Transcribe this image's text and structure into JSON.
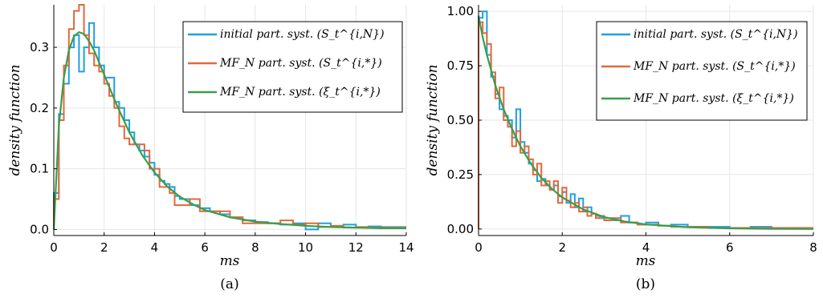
{
  "chart_data": [
    {
      "type": "line",
      "subtitle": "(a)",
      "xlabel": "ms",
      "ylabel": "density function",
      "xlim": [
        0,
        14
      ],
      "ylim": [
        -0.01,
        0.37
      ],
      "x_ticks": [
        "0",
        "2",
        "4",
        "6",
        "8",
        "10",
        "12",
        "14"
      ],
      "y_ticks": [
        "0.0",
        "0.1",
        "0.2",
        "0.3"
      ],
      "grid": true,
      "legend_position": "top-right",
      "series": [
        {
          "name": "initial part. syst. (S_t^{i,N})",
          "color": "#1f9fe0",
          "style": "step",
          "bin_edges": [
            0,
            0.2,
            0.4,
            0.6,
            0.8,
            1.0,
            1.2,
            1.4,
            1.6,
            1.8,
            2.0,
            2.2,
            2.4,
            2.6,
            2.8,
            3.0,
            3.2,
            3.4,
            3.6,
            3.8,
            4.0,
            4.2,
            4.4,
            4.6,
            4.8,
            5.0,
            5.4,
            5.8,
            6.2,
            6.6,
            7.0,
            7.5,
            8.0,
            8.5,
            9.0,
            9.5,
            10.0,
            10.5,
            11.0,
            11.5,
            12.0,
            12.5,
            13.0,
            13.5,
            14.0
          ],
          "values": [
            0.06,
            0.19,
            0.24,
            0.3,
            0.32,
            0.26,
            0.3,
            0.34,
            0.3,
            0.27,
            0.25,
            0.25,
            0.21,
            0.2,
            0.18,
            0.16,
            0.14,
            0.13,
            0.12,
            0.11,
            0.09,
            0.08,
            0.075,
            0.07,
            0.055,
            0.05,
            0.04,
            0.035,
            0.03,
            0.025,
            0.02,
            0.015,
            0.012,
            0.01,
            0.008,
            0.01,
            0.0,
            0.01,
            0.004,
            0.008,
            0.003,
            0.005,
            0.004,
            0.004
          ]
        },
        {
          "name": "MF_N part. syst. (S_t^{i,*})",
          "color": "#e2683c",
          "style": "step",
          "bin_edges": [
            0,
            0.2,
            0.4,
            0.6,
            0.8,
            1.0,
            1.2,
            1.4,
            1.6,
            1.8,
            2.0,
            2.2,
            2.4,
            2.6,
            2.8,
            3.0,
            3.2,
            3.4,
            3.6,
            3.8,
            4.0,
            4.2,
            4.4,
            4.6,
            4.8,
            5.0,
            5.4,
            5.8,
            6.2,
            6.6,
            7.0,
            7.5,
            8.0,
            8.5,
            9.0,
            9.5,
            10.0,
            10.5,
            11.0,
            11.5,
            12.0,
            12.5,
            13.0,
            13.5,
            14.0
          ],
          "values": [
            0.05,
            0.18,
            0.27,
            0.33,
            0.36,
            0.37,
            0.32,
            0.29,
            0.27,
            0.26,
            0.24,
            0.22,
            0.2,
            0.17,
            0.15,
            0.14,
            0.14,
            0.14,
            0.13,
            0.1,
            0.1,
            0.07,
            0.07,
            0.06,
            0.04,
            0.04,
            0.05,
            0.03,
            0.03,
            0.03,
            0.02,
            0.01,
            0.01,
            0.01,
            0.015,
            0.008,
            0.01,
            0.004,
            0.006,
            0.003,
            0.004,
            0.003,
            0.003,
            0.003
          ]
        },
        {
          "name": "MF_N part. syst. (ξ_t^{i,*})",
          "color": "#3a9e4a",
          "style": "line",
          "x": [
            0,
            0.2,
            0.4,
            0.6,
            0.8,
            1.0,
            1.2,
            1.4,
            1.6,
            1.8,
            2.0,
            2.5,
            3.0,
            3.5,
            4.0,
            4.5,
            5.0,
            5.5,
            6.0,
            7.0,
            8.0,
            9.0,
            10.0,
            11.0,
            12.0,
            13.0,
            14.0
          ],
          "y": [
            0.0,
            0.17,
            0.25,
            0.295,
            0.318,
            0.325,
            0.322,
            0.31,
            0.295,
            0.275,
            0.255,
            0.205,
            0.16,
            0.123,
            0.094,
            0.071,
            0.054,
            0.042,
            0.032,
            0.02,
            0.013,
            0.009,
            0.006,
            0.004,
            0.003,
            0.002,
            0.002
          ]
        }
      ]
    },
    {
      "type": "line",
      "subtitle": "(b)",
      "xlabel": "ms",
      "ylabel": "density function",
      "xlim": [
        0,
        8
      ],
      "ylim": [
        -0.03,
        1.03
      ],
      "x_ticks": [
        "0",
        "2",
        "4",
        "6",
        "8"
      ],
      "y_ticks": [
        "0.00",
        "0.25",
        "0.50",
        "0.75",
        "1.00"
      ],
      "grid": true,
      "legend_position": "top-right",
      "series": [
        {
          "name": "initial part. syst. (S_t^{i,N})",
          "color": "#1f9fe0",
          "style": "step",
          "bin_edges": [
            0,
            0.1,
            0.2,
            0.3,
            0.4,
            0.5,
            0.6,
            0.7,
            0.8,
            0.9,
            1.0,
            1.1,
            1.2,
            1.3,
            1.4,
            1.5,
            1.6,
            1.7,
            1.8,
            1.9,
            2.0,
            2.1,
            2.2,
            2.3,
            2.4,
            2.5,
            2.6,
            2.7,
            2.8,
            2.9,
            3.0,
            3.2,
            3.4,
            3.6,
            3.8,
            4.0,
            4.3,
            4.6,
            5.0,
            5.5,
            6.0,
            6.5,
            7.0,
            7.5,
            8.0
          ],
          "values": [
            0.97,
            1.0,
            0.8,
            0.7,
            0.62,
            0.55,
            0.52,
            0.5,
            0.42,
            0.55,
            0.4,
            0.35,
            0.3,
            0.27,
            0.22,
            0.23,
            0.2,
            0.18,
            0.2,
            0.15,
            0.17,
            0.12,
            0.16,
            0.1,
            0.14,
            0.08,
            0.1,
            0.07,
            0.06,
            0.05,
            0.05,
            0.04,
            0.06,
            0.03,
            0.02,
            0.03,
            0.015,
            0.02,
            0.01,
            0.01,
            0.005,
            0.01,
            0.005,
            0.005
          ]
        },
        {
          "name": "MF_N part. syst. (S_t^{i,*})",
          "color": "#e2683c",
          "style": "step",
          "bin_edges": [
            0,
            0.1,
            0.2,
            0.3,
            0.4,
            0.5,
            0.6,
            0.7,
            0.8,
            0.9,
            1.0,
            1.1,
            1.2,
            1.3,
            1.4,
            1.5,
            1.6,
            1.7,
            1.8,
            1.9,
            2.0,
            2.1,
            2.2,
            2.3,
            2.4,
            2.5,
            2.6,
            2.7,
            2.8,
            2.9,
            3.0,
            3.2,
            3.4,
            3.6,
            3.8,
            4.0,
            4.3,
            4.6,
            5.0,
            5.5,
            6.0,
            6.5,
            7.0,
            7.5,
            8.0
          ],
          "values": [
            0.95,
            0.9,
            0.85,
            0.72,
            0.6,
            0.65,
            0.5,
            0.47,
            0.38,
            0.45,
            0.35,
            0.38,
            0.32,
            0.25,
            0.3,
            0.2,
            0.22,
            0.18,
            0.22,
            0.12,
            0.19,
            0.13,
            0.1,
            0.12,
            0.08,
            0.1,
            0.06,
            0.07,
            0.05,
            0.06,
            0.04,
            0.05,
            0.03,
            0.03,
            0.02,
            0.02,
            0.015,
            0.01,
            0.01,
            0.005,
            0.005,
            0.005,
            0.005,
            0.005
          ]
        },
        {
          "name": "MF_N part. syst. (ξ_t^{i,*})",
          "color": "#3a9e4a",
          "style": "line",
          "x": [
            0,
            0.1,
            0.2,
            0.4,
            0.6,
            0.8,
            1.0,
            1.25,
            1.5,
            1.75,
            2.0,
            2.5,
            3.0,
            3.5,
            4.0,
            5.0,
            6.0,
            7.0,
            8.0
          ],
          "y": [
            0.98,
            0.88,
            0.8,
            0.66,
            0.55,
            0.46,
            0.38,
            0.3,
            0.235,
            0.185,
            0.145,
            0.09,
            0.055,
            0.034,
            0.021,
            0.008,
            0.003,
            0.001,
            0.0
          ]
        }
      ]
    }
  ]
}
